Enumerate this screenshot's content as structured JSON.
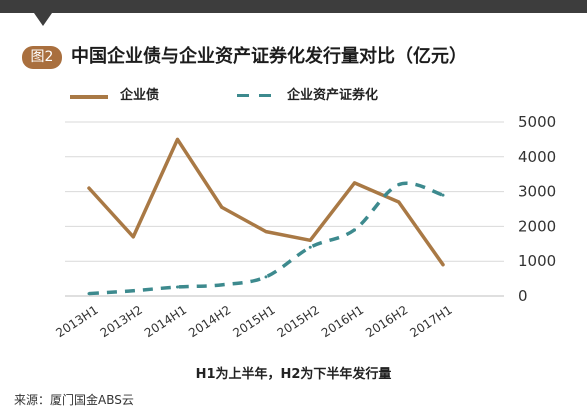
{
  "header": {
    "badge": "图2",
    "title": "中国企业债与企业资产证券化发行量对比（亿元）"
  },
  "footer": {
    "note": "H1为上半年，H2为下半年发行量",
    "source": "来源：厦门国金ABS云"
  },
  "colors": {
    "corporate_bond": "#a97945",
    "abs": "#3d8a8e",
    "grid": "#d9d9d9",
    "badge": "#a96f3e",
    "topbar": "#3d3d3d"
  },
  "chart_data": {
    "type": "line",
    "title": "中国企业债与企业资产证券化发行量对比（亿元）",
    "categories": [
      "2013H1",
      "2013H2",
      "2014H1",
      "2014H2",
      "2015H1",
      "2015H2",
      "2016H1",
      "2016H2",
      "2017H1"
    ],
    "y_ticks": [
      "5000",
      "4000",
      "3000",
      "2000",
      "1000",
      "0"
    ],
    "ylim": [
      0,
      5000
    ],
    "grid": true,
    "legend_position": "top-left",
    "series": [
      {
        "name": "企业债",
        "style": "solid",
        "color": "#a97945",
        "values": [
          3100,
          1700,
          4500,
          2550,
          1850,
          1600,
          3250,
          2700,
          900
        ]
      },
      {
        "name": "企业资产证券化",
        "style": "dashed",
        "color": "#3d8a8e",
        "values": [
          70,
          150,
          260,
          320,
          550,
          1400,
          1900,
          3200,
          2900
        ]
      }
    ]
  }
}
